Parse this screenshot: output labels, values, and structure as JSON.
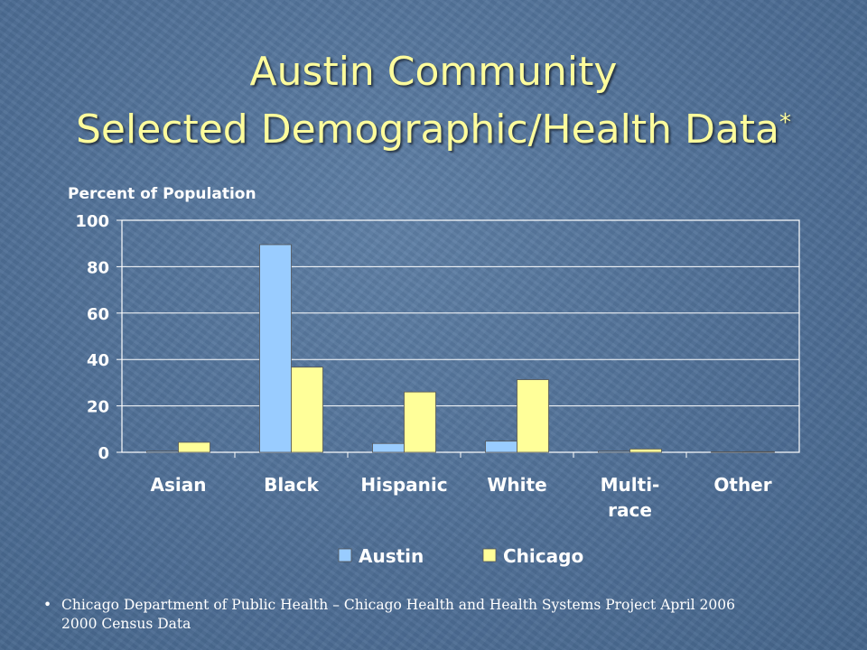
{
  "slide": {
    "title_line1": "Austin Community",
    "title_line2": "Selected Demographic/Health Data",
    "title_marker": "*",
    "footnote_bullet": "•",
    "footnote_line1": "Chicago Department of Public Health – Chicago Health and Health Systems Project April 2006",
    "footnote_line2": "2000 Census Data"
  },
  "chart_data": {
    "type": "bar",
    "ylabel": "Percent of Population",
    "categories": [
      [
        "Asian"
      ],
      [
        "Black"
      ],
      [
        "Hispanic"
      ],
      [
        "White"
      ],
      [
        "Multi-",
        "race"
      ],
      [
        "Other"
      ]
    ],
    "series": [
      {
        "name": "Austin",
        "color": "#99ccff",
        "values": [
          0.5,
          89.5,
          3.8,
          4.8,
          0.5,
          0.2
        ]
      },
      {
        "name": "Chicago",
        "color": "#ffff99",
        "values": [
          4.3,
          36.7,
          26.0,
          31.3,
          1.4,
          0.3
        ]
      }
    ],
    "ylim": [
      0,
      100
    ],
    "yticks": [
      0,
      20,
      40,
      60,
      80,
      100
    ],
    "grid": true,
    "legend": "bottom",
    "colors": {
      "plot_border": "#ffffff",
      "gridline": "#ffffff",
      "axis_text": "#ffffff",
      "bar_edge": "#555555"
    }
  }
}
